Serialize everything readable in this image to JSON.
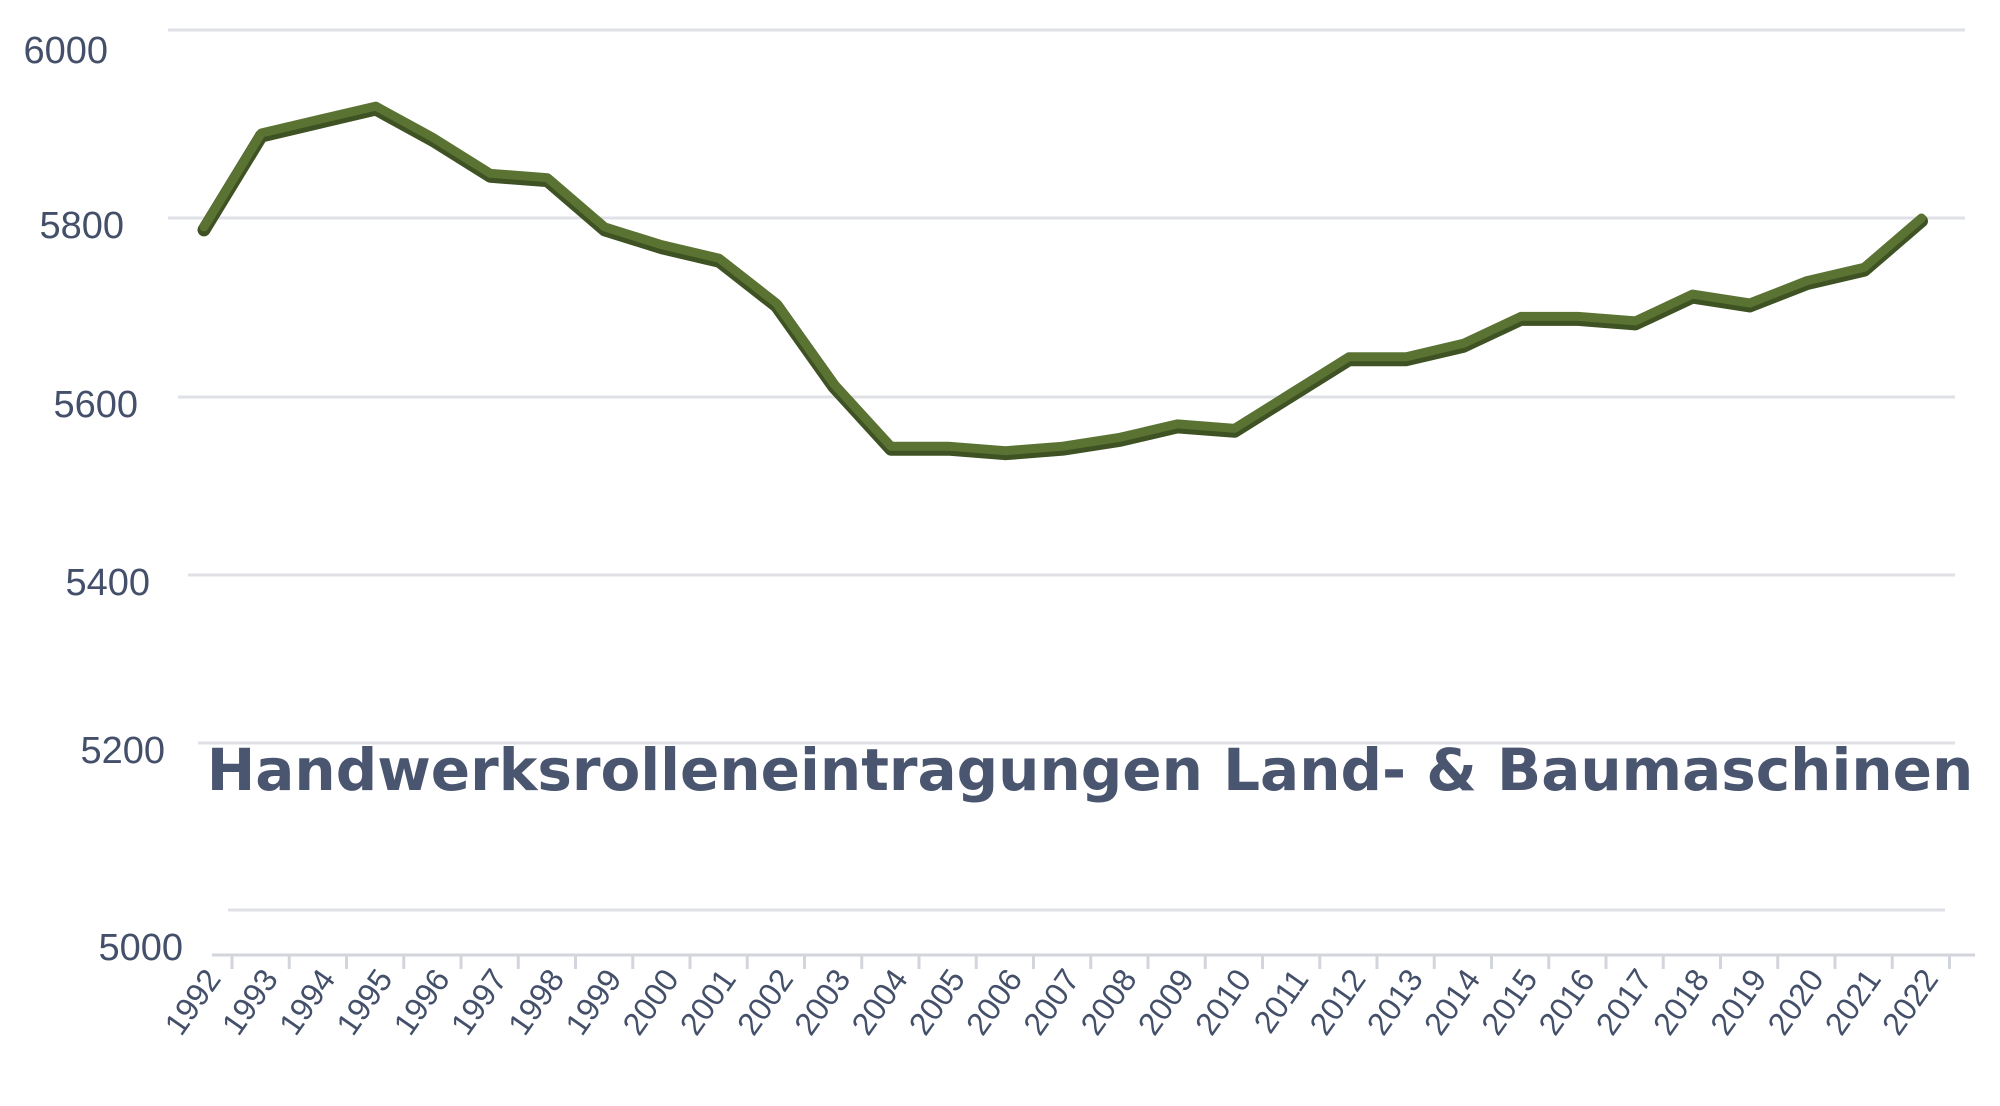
{
  "chart_data": {
    "type": "line",
    "title": "Handwerksrolleneintragungen Land- & Baumaschinen",
    "xlabel": "",
    "ylabel": "",
    "ylim": [
      5000,
      6000
    ],
    "yticks": [
      "6000",
      "5800",
      "5600",
      "5400",
      "5200",
      "5000"
    ],
    "grid": true,
    "colors": {
      "line": "#5b7332",
      "line_shadow": "#3e5224",
      "grid": "#dfe1e7",
      "text": "#44506a"
    },
    "categories": [
      "1992",
      "1993",
      "1994",
      "1995",
      "1996",
      "1997",
      "1998",
      "1999",
      "2000",
      "2001",
      "2002",
      "2003",
      "2004",
      "2005",
      "2006",
      "2007",
      "2008",
      "2009",
      "2010",
      "2011",
      "2012",
      "2013",
      "2014",
      "2015",
      "2016",
      "2017",
      "2018",
      "2019",
      "2020",
      "2021",
      "2022"
    ],
    "series": [
      {
        "values": [
          5790,
          5895,
          5910,
          5925,
          5890,
          5850,
          5845,
          5790,
          5770,
          5755,
          5705,
          5615,
          5545,
          5545,
          5540,
          5545,
          5555,
          5570,
          5565,
          5605,
          5645,
          5645,
          5660,
          5690,
          5690,
          5685,
          5715,
          5705,
          5730,
          5745,
          5800
        ]
      }
    ]
  }
}
